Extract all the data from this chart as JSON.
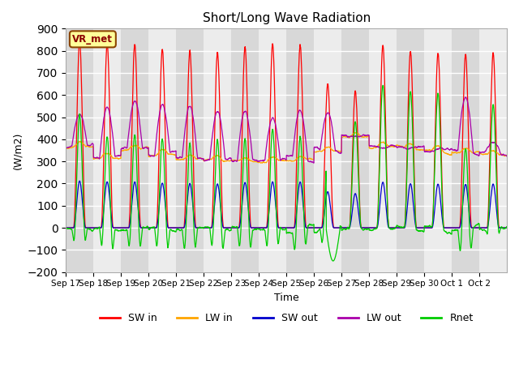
{
  "title": "Short/Long Wave Radiation",
  "ylabel": "(W/m2)",
  "xlabel": "Time",
  "ylim": [
    -200,
    900
  ],
  "yticks": [
    -200,
    -100,
    0,
    100,
    200,
    300,
    400,
    500,
    600,
    700,
    800,
    900
  ],
  "annotation": "VR_met",
  "legend": [
    "SW in",
    "LW in",
    "SW out",
    "LW out",
    "Rnet"
  ],
  "colors": {
    "SW in": "#ff0000",
    "LW in": "#ffa500",
    "SW out": "#0000cc",
    "LW out": "#aa00aa",
    "Rnet": "#00cc00"
  },
  "n_days": 16,
  "x_labels": [
    "Sep 17",
    "Sep 18",
    "Sep 19",
    "Sep 20",
    "Sep 21",
    "Sep 22",
    "Sep 23",
    "Sep 24",
    "Sep 25",
    "Sep 26",
    "Sep 27",
    "Sep 28",
    "Sep 29",
    "Sep 30",
    "Oct 1",
    "Oct 2"
  ],
  "sw_in_peaks": [
    845,
    830,
    830,
    808,
    800,
    792,
    818,
    830,
    825,
    650,
    618,
    825,
    798,
    790,
    785,
    790
  ],
  "lw_out_peaks": [
    515,
    545,
    575,
    555,
    550,
    525,
    525,
    500,
    535,
    520,
    415,
    360,
    360,
    355,
    585,
    390
  ],
  "lw_in_base": [
    365,
    315,
    355,
    330,
    310,
    305,
    300,
    300,
    305,
    345,
    410,
    365,
    360,
    345,
    340,
    330
  ],
  "sw_out_ratio": 0.25,
  "rnet_night": -75,
  "rnet_deep_day": 9,
  "rnet_deep_min": -140,
  "plot_bg": "#e8e8e8",
  "band_light": "#ececec",
  "band_dark": "#d8d8d8",
  "grid_color": "#ffffff"
}
